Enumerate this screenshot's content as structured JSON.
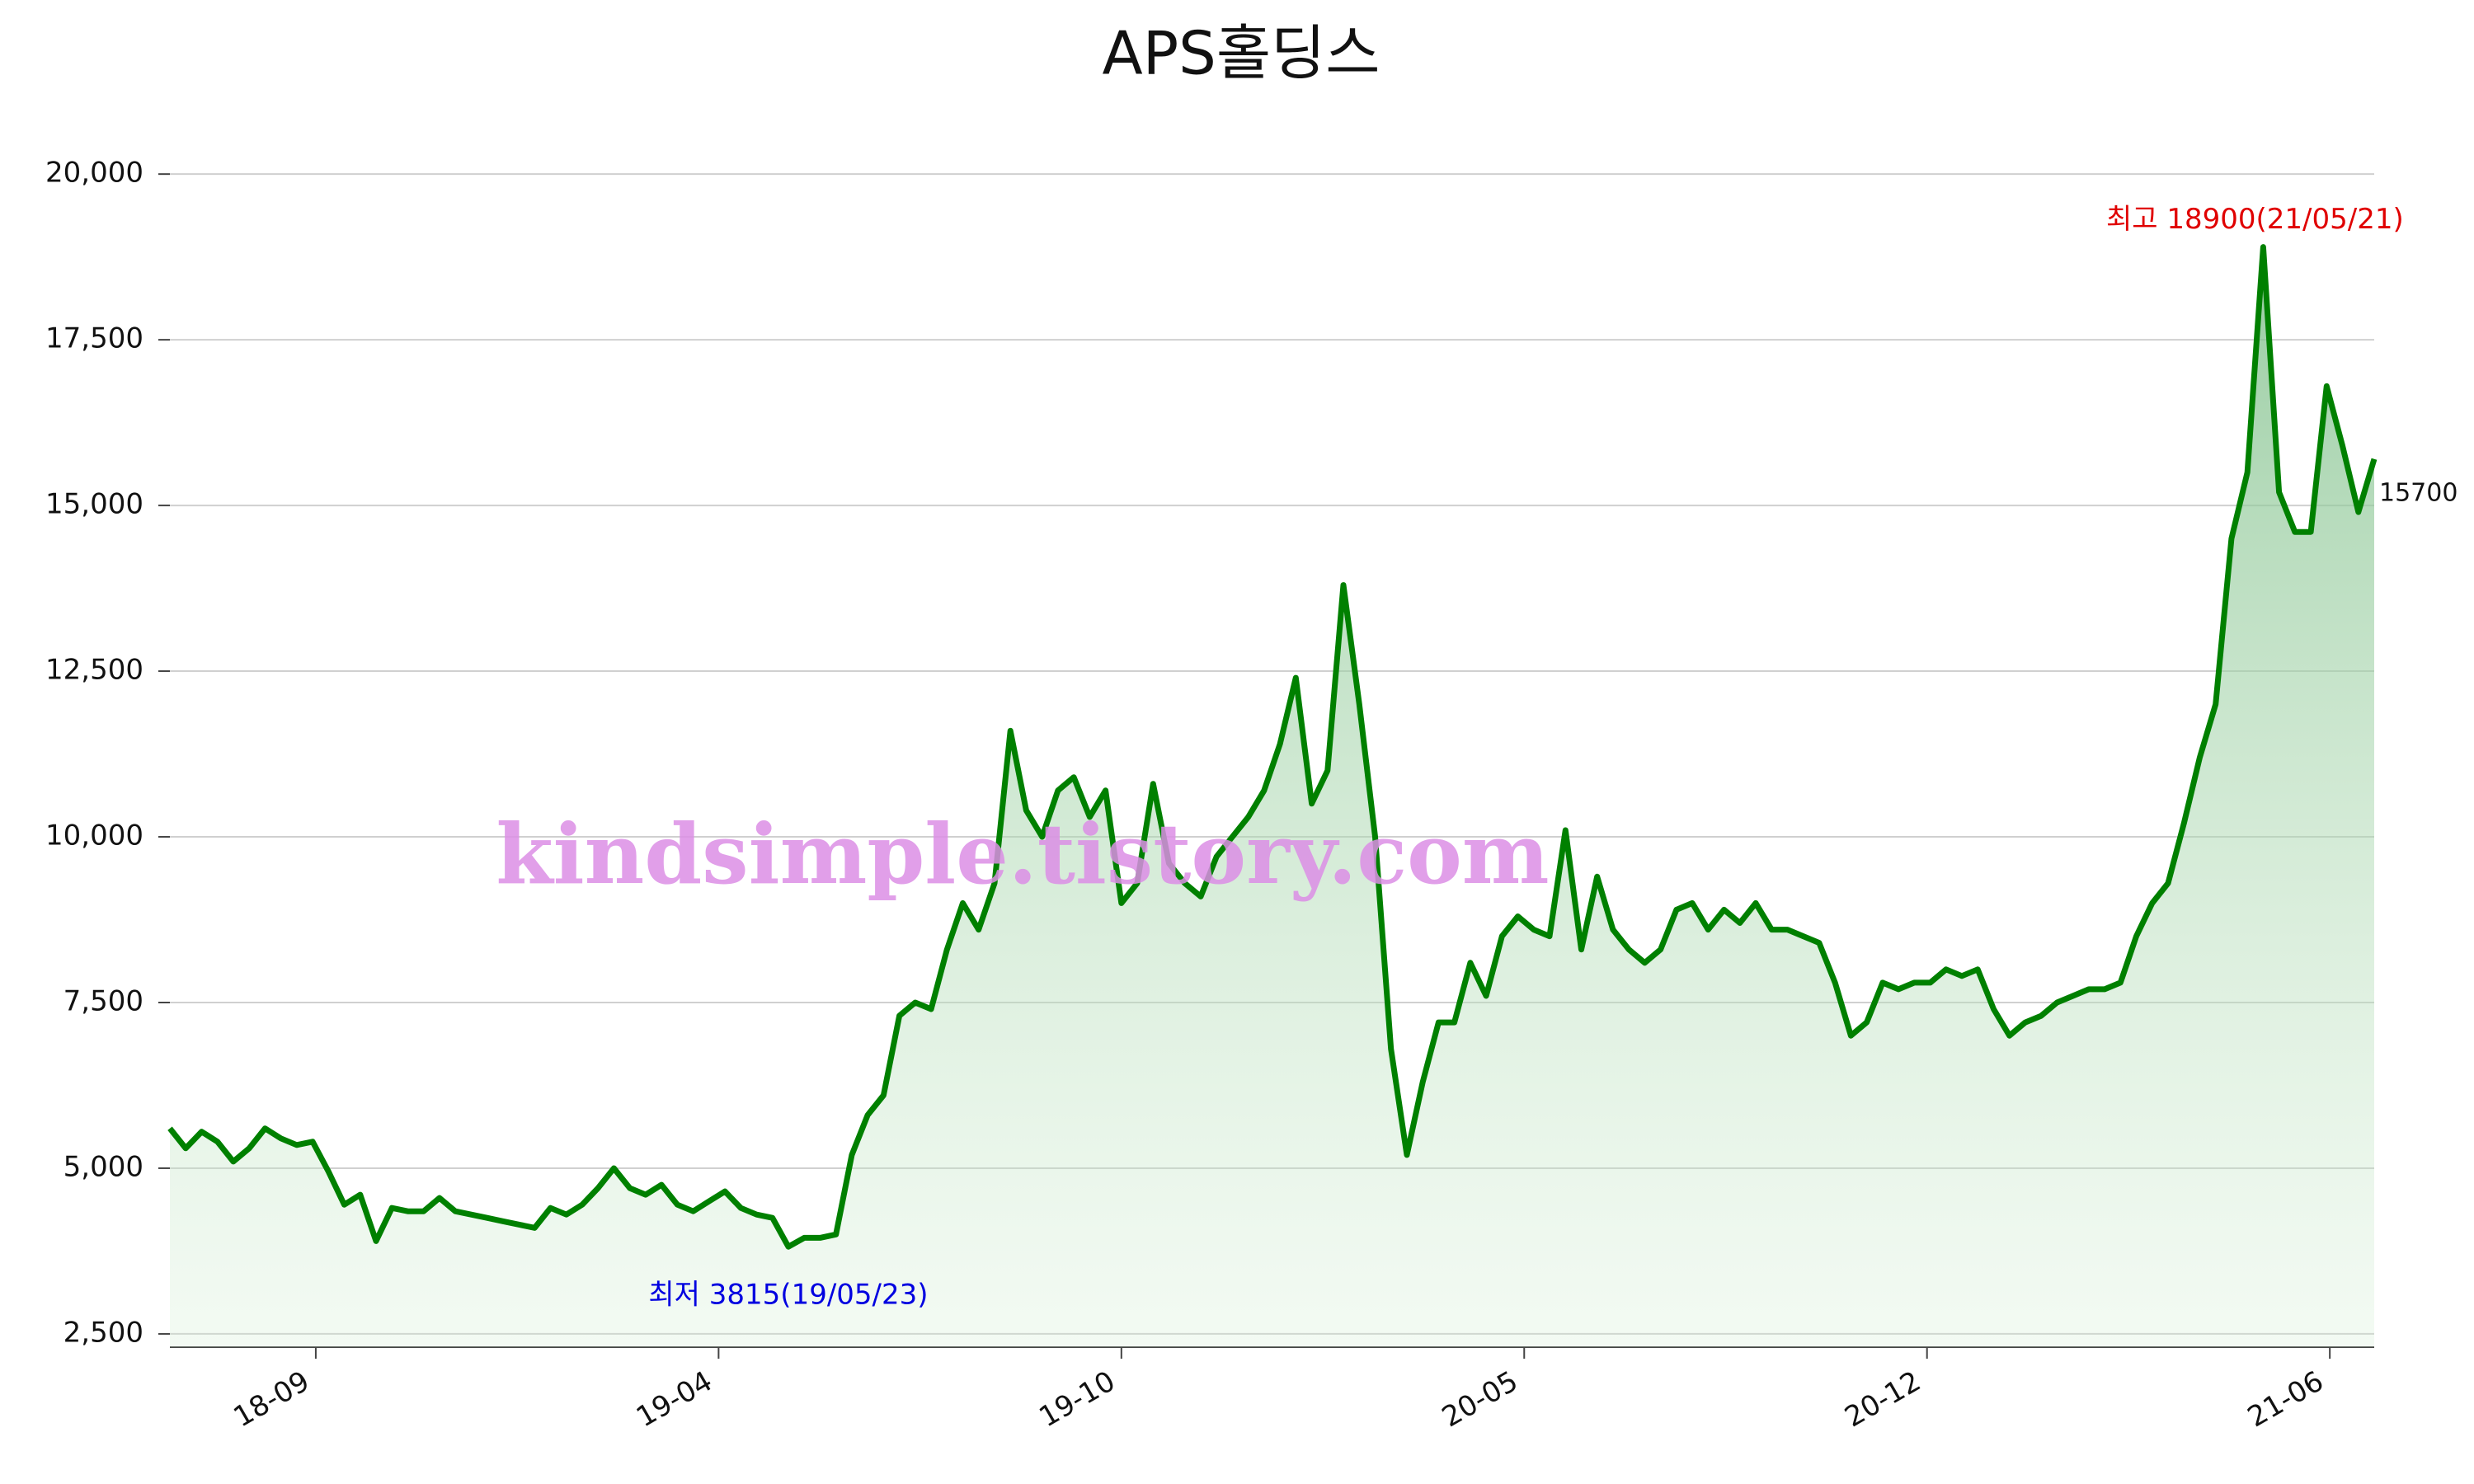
{
  "chart_data": {
    "type": "line",
    "title": "APS홀딩스",
    "series": [
      {
        "name": "APS홀딩스",
        "color": "#008000",
        "values": [
          5600,
          5300,
          5550,
          5400,
          5100,
          5300,
          5600,
          5450,
          5350,
          5400,
          4950,
          4450,
          4600,
          3900,
          4400,
          4350,
          4350,
          4550,
          4350,
          4300,
          4250,
          4200,
          4150,
          4100,
          4400,
          4300,
          4450,
          4700,
          5000,
          4700,
          4600,
          4750,
          4450,
          4350,
          4500,
          4650,
          4400,
          4300,
          4250,
          3815,
          3950,
          3950,
          4000,
          5200,
          5800,
          6100,
          7300,
          7500,
          7400,
          8300,
          9000,
          8600,
          9300,
          11600,
          10400,
          10000,
          10700,
          10900,
          10300,
          10700,
          9000,
          9300,
          10800,
          9600,
          9300,
          9100,
          9700,
          10000,
          10300,
          10700,
          11400,
          12400,
          10500,
          11000,
          13800,
          12000,
          10000,
          6800,
          5200,
          6300,
          7200,
          7200,
          8100,
          7600,
          8500,
          8800,
          8600,
          8500,
          10100,
          8300,
          9400,
          8600,
          8300,
          8100,
          8300,
          8900,
          9000,
          8600,
          8900,
          8700,
          9000,
          8600,
          8600,
          8500,
          8400,
          7800,
          7000,
          7200,
          7800,
          7700,
          7800,
          7800,
          8000,
          7900,
          8000,
          7400,
          7000,
          7200,
          7300,
          7500,
          7600,
          7700,
          7700,
          7800,
          8500,
          9000,
          9300,
          10200,
          11200,
          12000,
          14500,
          15500,
          18900,
          15200,
          14600,
          14600,
          16800,
          15900,
          14900,
          15700
        ]
      }
    ],
    "xlim": [
      0,
      139
    ],
    "xticks": [
      {
        "value": 9.2,
        "label": "18-09"
      },
      {
        "value": 34.6,
        "label": "19-04"
      },
      {
        "value": 60,
        "label": "19-10"
      },
      {
        "value": 85.4,
        "label": "20-05"
      },
      {
        "value": 110.8,
        "label": "20-12"
      },
      {
        "value": 136.2,
        "label": "21-06"
      }
    ],
    "ylim": [
      2300,
      20400
    ],
    "yticks": [
      {
        "value": 2500,
        "label": "2,500"
      },
      {
        "value": 5000,
        "label": "5,000"
      },
      {
        "value": 7500,
        "label": "7,500"
      },
      {
        "value": 10000,
        "label": "10,000"
      },
      {
        "value": 12500,
        "label": "12,500"
      },
      {
        "value": 15000,
        "label": "15,000"
      },
      {
        "value": 17500,
        "label": "17,500"
      },
      {
        "value": 20000,
        "label": "20,000"
      }
    ],
    "grid": true,
    "annotations": {
      "max": "최고 18900(21/05/21)",
      "min": "최저 3815(19/05/23)",
      "last": "15700",
      "watermark": "kindsimple.tistory.com"
    }
  }
}
